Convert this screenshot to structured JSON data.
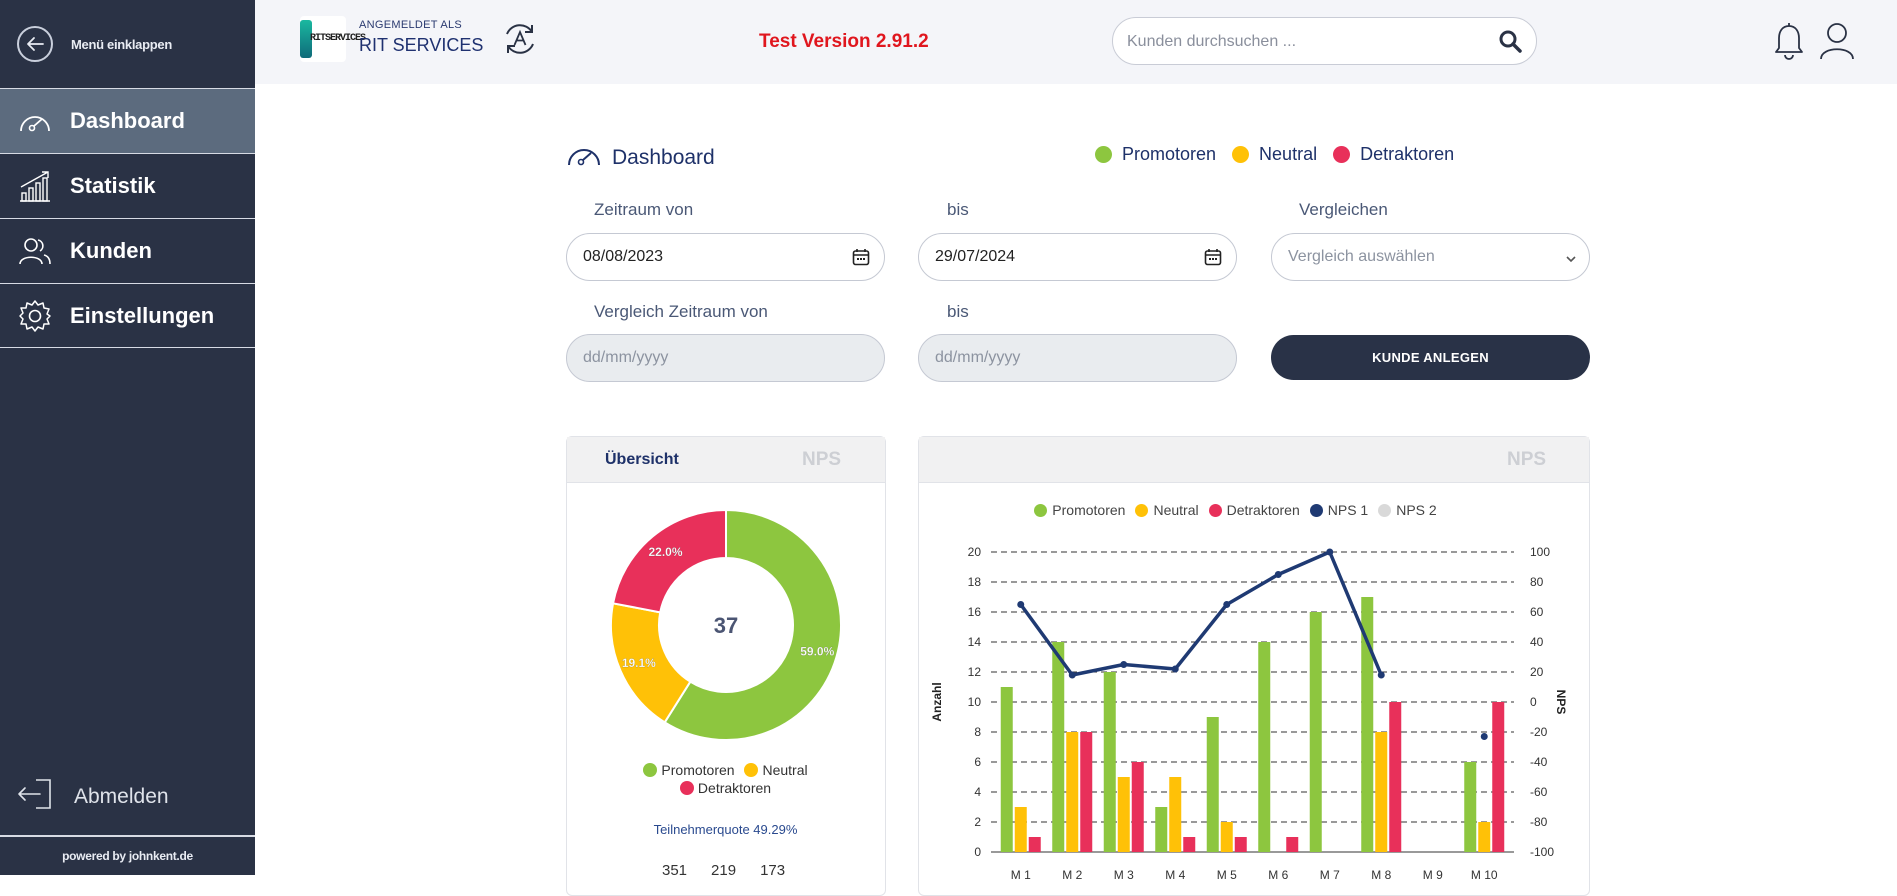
{
  "sidebar": {
    "collapse_label": "Menü einklappen",
    "items": [
      {
        "label": "Dashboard",
        "active": true
      },
      {
        "label": "Statistik"
      },
      {
        "label": "Kunden"
      },
      {
        "label": "Einstellungen"
      }
    ],
    "logout_label": "Abmelden",
    "powered_by": "powered by johnkent.de"
  },
  "header": {
    "logo_text": "RITSERVICES",
    "logged_in_as": "ANGEMELDET ALS",
    "user_name": "RIT SERVICES",
    "version": "Test Version 2.91.2",
    "search_placeholder": "Kunden durchsuchen ..."
  },
  "dashboard": {
    "title": "Dashboard",
    "legend": [
      {
        "label": "Promotoren",
        "color": "#8dc63f"
      },
      {
        "label": "Neutral",
        "color": "#ffc107"
      },
      {
        "label": "Detraktoren",
        "color": "#e8305a"
      }
    ],
    "filters": {
      "zeitraum_von_label": "Zeitraum von",
      "zeitraum_von_value": "08/08/2023",
      "bis_label": "bis",
      "bis_value": "29/07/2024",
      "vergleichen_label": "Vergleichen",
      "vergleichen_placeholder": "Vergleich auswählen",
      "vergleich_von_label": "Vergleich Zeitraum von",
      "vergleich_von_placeholder": "dd/mm/yyyy",
      "vergleich_bis_label": "bis",
      "vergleich_bis_placeholder": "dd/mm/yyyy",
      "kunde_anlegen": "KUNDE ANLEGEN"
    },
    "overview": {
      "tab_overview": "Übersicht",
      "tab_nps": "NPS",
      "total": "37",
      "teilnehmerquote": "Teilnehmerquote 49.29%",
      "counts": [
        "351",
        "219",
        "173"
      ]
    },
    "nps_card": {
      "tab_nps": "NPS"
    }
  },
  "chart_data": [
    {
      "type": "pie",
      "donut": true,
      "center_label": "37",
      "slices": [
        {
          "label": "Promotoren",
          "value": 59.0,
          "display": "59.0%",
          "color": "#8dc63f"
        },
        {
          "label": "Neutral",
          "value": 19.1,
          "display": "19.1%",
          "color": "#ffc107"
        },
        {
          "label": "Detraktoren",
          "value": 22.0,
          "display": "22.0%",
          "color": "#e8305a"
        }
      ],
      "legend": [
        "Promotoren",
        "Neutral",
        "Detraktoren"
      ]
    },
    {
      "type": "bar",
      "categories": [
        "M 1",
        "M 2",
        "M 3",
        "M 4",
        "M 5",
        "M 6",
        "M 7",
        "M 8",
        "M 9",
        "M 10"
      ],
      "series": [
        {
          "name": "Promotoren",
          "color": "#8dc63f",
          "values": [
            11,
            14,
            12,
            3,
            9,
            14,
            16,
            17,
            0,
            6
          ]
        },
        {
          "name": "Neutral",
          "color": "#ffc107",
          "values": [
            3,
            8,
            5,
            5,
            2,
            0,
            0,
            8,
            0,
            2
          ]
        },
        {
          "name": "Detraktoren",
          "color": "#e8305a",
          "values": [
            1,
            8,
            6,
            1,
            1,
            1,
            0,
            10,
            0,
            10
          ]
        }
      ],
      "line_series": [
        {
          "name": "NPS 1",
          "color": "#1f3a73",
          "values": [
            65,
            18,
            25,
            22,
            65,
            85,
            100,
            18,
            null,
            -23
          ]
        },
        {
          "name": "NPS 2",
          "color": "#d9d9d9",
          "values": []
        }
      ],
      "ylabel": "Anzahl",
      "y2label": "NPS",
      "ylim": [
        0,
        20
      ],
      "y_ticks": [
        0,
        2,
        4,
        6,
        8,
        10,
        12,
        14,
        16,
        18,
        20
      ],
      "y2lim": [
        -100,
        100
      ],
      "y2_ticks": [
        -100,
        -80,
        -60,
        -40,
        -20,
        0,
        20,
        40,
        60,
        80,
        100
      ],
      "legend": [
        "Promotoren",
        "Neutral",
        "Detraktoren",
        "NPS 1",
        "NPS 2"
      ],
      "legend_colors": [
        "#8dc63f",
        "#ffc107",
        "#e8305a",
        "#1f3a73",
        "#d9d9d9"
      ],
      "grid": true
    }
  ]
}
